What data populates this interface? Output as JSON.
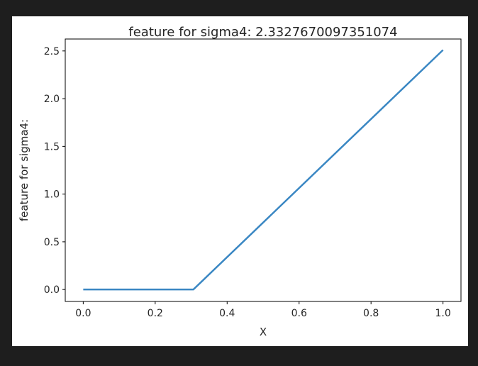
{
  "chart_data": {
    "type": "line",
    "title": "feature for sigma4: 2.3327670097351074",
    "xlabel": "X",
    "ylabel": "feature for sigma4:",
    "xlim": [
      -0.05,
      1.05
    ],
    "ylim": [
      -0.125,
      2.625
    ],
    "xticks": [
      0.0,
      0.2,
      0.4,
      0.6,
      0.8,
      1.0
    ],
    "xtick_labels": [
      "0.0",
      "0.2",
      "0.4",
      "0.6",
      "0.8",
      "1.0"
    ],
    "yticks": [
      0.0,
      0.5,
      1.0,
      1.5,
      2.0,
      2.5
    ],
    "ytick_labels": [
      "0.0",
      "0.5",
      "1.0",
      "1.5",
      "2.0",
      "2.5"
    ],
    "grid": false,
    "series": [
      {
        "color": "#3a87c3",
        "x": [
          0.0,
          0.3,
          0.306,
          1.0
        ],
        "y": [
          0.0,
          0.0,
          0.0,
          2.51
        ]
      }
    ]
  }
}
